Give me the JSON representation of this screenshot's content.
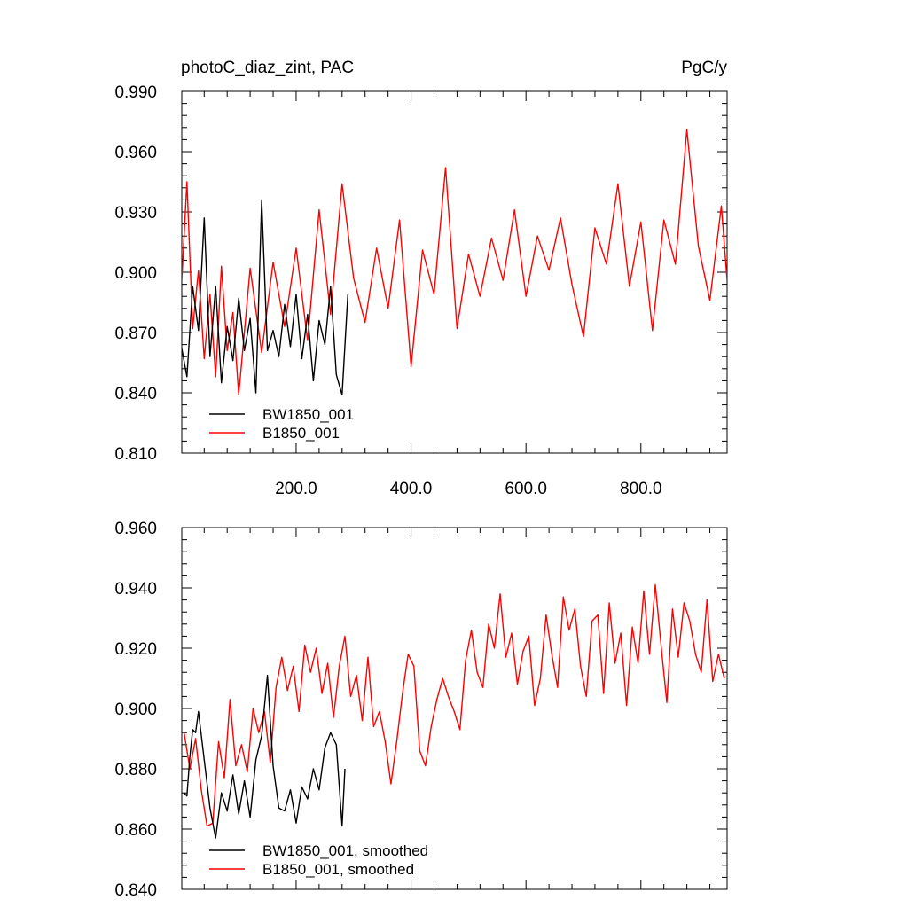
{
  "figure": {
    "title_left": "photoC_diaz_zint, PAC",
    "title_right": "PgC/y"
  },
  "chart_data": [
    {
      "type": "line",
      "panel": "top",
      "title": "photoC_diaz_zint, PAC",
      "units": "PgC/y",
      "xlabel": "",
      "ylabel": "",
      "xlim": [
        1,
        950
      ],
      "ylim": [
        0.81,
        0.99
      ],
      "xticks": [
        200,
        400,
        600,
        800
      ],
      "xtick_labels": [
        "200.0",
        "400.0",
        "600.0",
        "800.0"
      ],
      "yticks": [
        0.81,
        0.84,
        0.87,
        0.9,
        0.93,
        0.96,
        0.99
      ],
      "ytick_labels": [
        "0.810",
        "0.840",
        "0.870",
        "0.900",
        "0.930",
        "0.960",
        "0.990"
      ],
      "grid": false,
      "legend_position": "bottom-left",
      "series": [
        {
          "name": "BW1850_001",
          "color": "#000000",
          "x": [
            1,
            10,
            20,
            30,
            40,
            50,
            60,
            70,
            80,
            90,
            100,
            110,
            120,
            130,
            140,
            150,
            160,
            170,
            180,
            190,
            200,
            210,
            220,
            230,
            240,
            250,
            260,
            270,
            280,
            290
          ],
          "y": [
            0.862,
            0.848,
            0.893,
            0.871,
            0.927,
            0.858,
            0.893,
            0.845,
            0.873,
            0.856,
            0.887,
            0.861,
            0.877,
            0.84,
            0.936,
            0.861,
            0.871,
            0.858,
            0.884,
            0.863,
            0.889,
            0.857,
            0.879,
            0.846,
            0.876,
            0.864,
            0.893,
            0.849,
            0.839,
            0.889
          ]
        },
        {
          "name": "B1850_001",
          "color": "#ff0000",
          "x": [
            1,
            10,
            20,
            30,
            40,
            50,
            60,
            70,
            80,
            90,
            100,
            120,
            140,
            160,
            180,
            200,
            220,
            240,
            260,
            280,
            300,
            320,
            340,
            360,
            380,
            400,
            420,
            440,
            460,
            480,
            500,
            520,
            540,
            560,
            580,
            600,
            620,
            640,
            660,
            680,
            700,
            720,
            740,
            760,
            780,
            800,
            820,
            840,
            860,
            880,
            900,
            920,
            940,
            950
          ],
          "y": [
            0.896,
            0.945,
            0.872,
            0.901,
            0.857,
            0.889,
            0.848,
            0.903,
            0.861,
            0.88,
            0.839,
            0.902,
            0.86,
            0.905,
            0.873,
            0.912,
            0.866,
            0.931,
            0.879,
            0.944,
            0.897,
            0.875,
            0.912,
            0.882,
            0.926,
            0.853,
            0.911,
            0.889,
            0.952,
            0.872,
            0.909,
            0.888,
            0.917,
            0.896,
            0.931,
            0.888,
            0.918,
            0.901,
            0.927,
            0.894,
            0.868,
            0.922,
            0.904,
            0.944,
            0.893,
            0.925,
            0.871,
            0.926,
            0.904,
            0.971,
            0.913,
            0.886,
            0.933,
            0.896
          ]
        }
      ]
    },
    {
      "type": "line",
      "panel": "bottom",
      "title": "",
      "xlabel": "",
      "ylabel": "",
      "xlim": [
        1,
        950
      ],
      "ylim": [
        0.84,
        0.96
      ],
      "xticks": [
        200,
        400,
        600,
        800
      ],
      "yticks": [
        0.84,
        0.86,
        0.88,
        0.9,
        0.92,
        0.94,
        0.96
      ],
      "ytick_labels": [
        "0.840",
        "0.860",
        "0.880",
        "0.900",
        "0.920",
        "0.940",
        "0.960"
      ],
      "grid": false,
      "legend_position": "bottom-left",
      "series": [
        {
          "name": "BW1850_001, smoothed",
          "color": "#000000",
          "x": [
            5,
            10,
            15,
            20,
            25,
            30,
            40,
            50,
            60,
            70,
            80,
            90,
            100,
            110,
            120,
            130,
            140,
            150,
            160,
            170,
            180,
            190,
            200,
            210,
            220,
            230,
            240,
            250,
            260,
            270,
            280,
            285
          ],
          "y": [
            0.872,
            0.871,
            0.884,
            0.893,
            0.892,
            0.899,
            0.883,
            0.867,
            0.857,
            0.872,
            0.866,
            0.878,
            0.865,
            0.876,
            0.864,
            0.883,
            0.891,
            0.911,
            0.881,
            0.867,
            0.866,
            0.873,
            0.862,
            0.874,
            0.87,
            0.88,
            0.873,
            0.887,
            0.892,
            0.888,
            0.861,
            0.88
          ]
        },
        {
          "name": "B1850_001, smoothed",
          "color": "#ff0000",
          "x": [
            5,
            15,
            25,
            35,
            45,
            55,
            65,
            75,
            85,
            95,
            105,
            115,
            125,
            135,
            145,
            155,
            165,
            175,
            185,
            195,
            205,
            215,
            225,
            235,
            245,
            255,
            265,
            275,
            285,
            295,
            305,
            315,
            325,
            335,
            345,
            355,
            365,
            375,
            385,
            395,
            405,
            415,
            425,
            435,
            445,
            455,
            465,
            475,
            485,
            495,
            505,
            515,
            525,
            535,
            545,
            555,
            565,
            575,
            585,
            595,
            605,
            615,
            625,
            635,
            645,
            655,
            665,
            675,
            685,
            695,
            705,
            715,
            725,
            735,
            745,
            755,
            765,
            775,
            785,
            795,
            805,
            815,
            825,
            835,
            845,
            855,
            865,
            875,
            885,
            895,
            905,
            915,
            925,
            935,
            945
          ],
          "y": [
            0.892,
            0.88,
            0.89,
            0.873,
            0.861,
            0.862,
            0.889,
            0.877,
            0.903,
            0.881,
            0.888,
            0.879,
            0.9,
            0.892,
            0.899,
            0.882,
            0.907,
            0.917,
            0.906,
            0.914,
            0.899,
            0.921,
            0.912,
            0.92,
            0.905,
            0.915,
            0.897,
            0.914,
            0.924,
            0.904,
            0.911,
            0.896,
            0.917,
            0.894,
            0.899,
            0.889,
            0.875,
            0.889,
            0.905,
            0.918,
            0.914,
            0.886,
            0.881,
            0.894,
            0.903,
            0.91,
            0.904,
            0.899,
            0.893,
            0.916,
            0.926,
            0.912,
            0.907,
            0.928,
            0.92,
            0.938,
            0.917,
            0.925,
            0.908,
            0.919,
            0.924,
            0.901,
            0.91,
            0.931,
            0.918,
            0.907,
            0.937,
            0.926,
            0.933,
            0.914,
            0.904,
            0.929,
            0.931,
            0.905,
            0.935,
            0.915,
            0.925,
            0.901,
            0.927,
            0.915,
            0.939,
            0.918,
            0.941,
            0.921,
            0.902,
            0.933,
            0.917,
            0.935,
            0.929,
            0.918,
            0.912,
            0.936,
            0.909,
            0.918,
            0.91
          ]
        }
      ]
    }
  ]
}
